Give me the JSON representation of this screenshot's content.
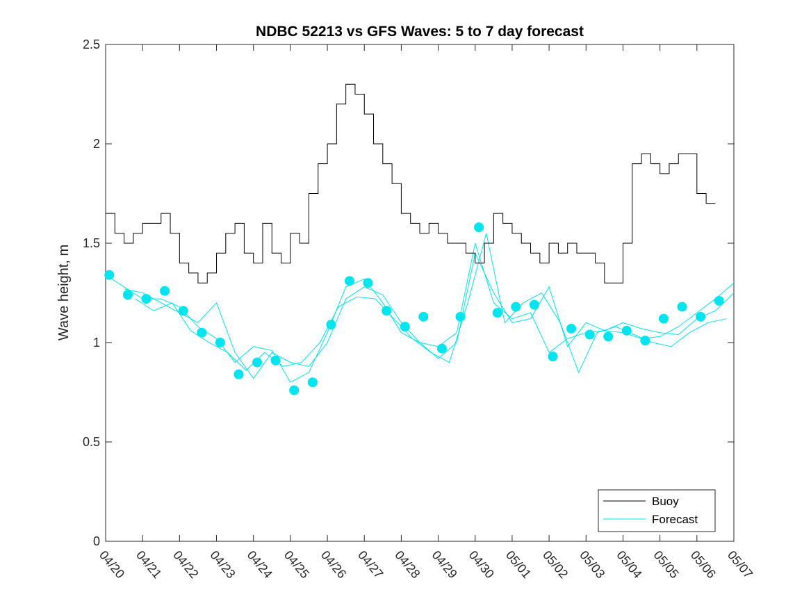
{
  "chart_data": {
    "type": "line",
    "title": "NDBC 52213 vs GFS Waves: 5 to 7 day forecast",
    "ylabel": "Wave height, m",
    "xlabel": "",
    "xlim": [
      "04/20",
      "05/07"
    ],
    "ylim": [
      0,
      2.5
    ],
    "yticks": [
      "0",
      "0.5",
      "1",
      "1.5",
      "2",
      "2.5"
    ],
    "xticks": [
      "04/20",
      "04/21",
      "04/22",
      "04/23",
      "04/24",
      "04/25",
      "04/26",
      "04/27",
      "04/28",
      "04/29",
      "04/30",
      "05/01",
      "05/02",
      "05/03",
      "05/04",
      "05/05",
      "05/06",
      "05/07"
    ],
    "grid": false,
    "legend": {
      "location": "bottom-right",
      "entries": [
        {
          "label": "Buoy",
          "color": "#000000"
        },
        {
          "label": "Forecast",
          "color": "#00ffff"
        }
      ]
    },
    "colors": {
      "buoy": "#000000",
      "forecast": "#00e5ee"
    },
    "series": [
      {
        "name": "Buoy",
        "x": [
          0.0,
          0.25,
          0.5,
          0.75,
          1.0,
          1.25,
          1.5,
          1.75,
          2.0,
          2.25,
          2.5,
          2.75,
          3.0,
          3.25,
          3.5,
          3.75,
          4.0,
          4.25,
          4.5,
          4.75,
          5.0,
          5.25,
          5.5,
          5.75,
          6.0,
          6.25,
          6.5,
          6.75,
          7.0,
          7.25,
          7.5,
          7.75,
          8.0,
          8.25,
          8.5,
          8.75,
          9.0,
          9.25,
          9.5,
          9.75,
          10.0,
          10.25,
          10.5,
          10.75,
          11.0,
          11.25,
          11.5,
          11.75,
          12.0,
          12.25,
          12.5,
          12.75,
          13.0,
          13.25,
          13.5,
          13.75,
          14.0,
          14.25,
          14.5,
          14.75,
          15.0,
          15.25,
          15.5,
          15.75,
          16.0,
          16.25,
          16.5
        ],
        "values": [
          1.65,
          1.55,
          1.5,
          1.55,
          1.6,
          1.6,
          1.65,
          1.55,
          1.4,
          1.35,
          1.3,
          1.35,
          1.45,
          1.55,
          1.6,
          1.45,
          1.4,
          1.6,
          1.45,
          1.4,
          1.55,
          1.5,
          1.75,
          1.9,
          2.0,
          2.2,
          2.3,
          2.25,
          2.15,
          2.0,
          1.9,
          1.8,
          1.65,
          1.6,
          1.55,
          1.6,
          1.55,
          1.5,
          1.5,
          1.45,
          1.4,
          1.5,
          1.65,
          1.6,
          1.55,
          1.5,
          1.45,
          1.4,
          1.5,
          1.45,
          1.5,
          1.45,
          1.45,
          1.4,
          1.3,
          1.3,
          1.5,
          1.9,
          1.95,
          1.9,
          1.85,
          1.9,
          1.95,
          1.95,
          1.75,
          1.7,
          1.7
        ]
      },
      {
        "name": "Forecast",
        "x": [
          0.1,
          0.6,
          1.1,
          1.6,
          2.1,
          2.6,
          3.1,
          3.6,
          4.1,
          4.6,
          5.1,
          5.6,
          6.1,
          6.6,
          7.1,
          7.6,
          8.1,
          8.6,
          9.1,
          9.6,
          10.1,
          10.6,
          11.1,
          11.6,
          12.1,
          12.6,
          13.1,
          13.6,
          14.1,
          14.6,
          15.1,
          15.6,
          16.1,
          16.6
        ],
        "values": [
          1.34,
          1.24,
          1.22,
          1.26,
          1.16,
          1.05,
          1.0,
          0.84,
          0.9,
          0.91,
          0.76,
          0.8,
          1.09,
          1.31,
          1.3,
          1.16,
          1.08,
          1.13,
          0.97,
          1.13,
          1.58,
          1.15,
          1.18,
          1.19,
          0.93,
          1.07,
          1.04,
          1.03,
          1.06,
          1.01,
          1.12,
          1.18,
          1.13,
          1.21
        ]
      }
    ],
    "forecast_runs": [
      {
        "x": [
          0.0,
          0.5,
          1.0,
          1.5,
          2.0,
          2.5,
          3.0,
          3.5,
          4.0,
          4.5,
          5.0,
          5.5,
          6.0,
          6.5,
          7.0,
          7.5,
          8.0,
          8.5,
          9.0,
          9.5,
          10.0,
          10.5,
          11.0,
          11.5,
          12.0,
          12.5,
          13.0,
          13.5,
          14.0,
          14.5,
          15.0,
          15.5,
          16.0,
          16.5,
          17.0
        ],
        "values": [
          1.34,
          1.28,
          1.22,
          1.22,
          1.18,
          1.08,
          1.02,
          0.9,
          0.98,
          0.96,
          0.8,
          0.85,
          1.05,
          1.28,
          1.32,
          1.2,
          1.05,
          1.0,
          0.98,
          1.05,
          1.5,
          1.2,
          1.12,
          1.15,
          0.95,
          1.02,
          1.05,
          1.06,
          1.05,
          1.02,
          1.03,
          1.08,
          1.15,
          1.22,
          1.3
        ]
      },
      {
        "x": [
          0.5,
          1.0,
          1.5,
          2.0,
          2.5,
          3.0,
          3.5,
          4.0,
          4.5,
          5.0,
          5.5,
          6.0,
          6.5,
          7.0,
          7.5,
          8.0,
          8.5,
          9.0,
          9.5,
          10.0,
          10.5,
          11.0,
          11.5,
          12.0,
          12.5,
          13.0,
          13.5,
          14.0,
          14.5,
          15.0,
          15.5,
          16.0,
          16.5,
          17.0
        ],
        "values": [
          1.27,
          1.25,
          1.2,
          1.15,
          1.1,
          1.2,
          0.95,
          0.82,
          0.95,
          0.9,
          0.88,
          1.0,
          1.22,
          1.28,
          1.24,
          1.1,
          1.0,
          0.92,
          1.0,
          1.45,
          1.25,
          1.1,
          1.12,
          1.28,
          0.98,
          1.1,
          1.06,
          1.1,
          1.07,
          1.05,
          1.04,
          1.12,
          1.16,
          1.25
        ]
      },
      {
        "x": [
          0.8,
          1.3,
          1.8,
          2.3,
          2.8,
          3.3,
          3.8,
          4.3,
          4.8,
          5.3,
          5.8,
          6.3,
          6.8,
          7.3,
          7.8,
          8.3,
          8.8,
          9.3,
          9.8,
          10.3,
          10.8,
          11.3,
          11.8,
          12.3,
          12.8,
          13.3,
          13.8,
          14.3,
          14.8,
          15.3,
          15.8,
          16.3,
          16.8
        ],
        "values": [
          1.22,
          1.16,
          1.2,
          1.06,
          1.0,
          0.95,
          0.86,
          0.95,
          0.88,
          0.9,
          1.0,
          1.18,
          1.23,
          1.22,
          1.12,
          1.02,
          0.95,
          0.9,
          1.2,
          1.55,
          1.1,
          1.2,
          1.25,
          1.1,
          0.85,
          1.05,
          1.08,
          1.04,
          1.0,
          0.98,
          1.05,
          1.1,
          1.12
        ]
      }
    ]
  }
}
